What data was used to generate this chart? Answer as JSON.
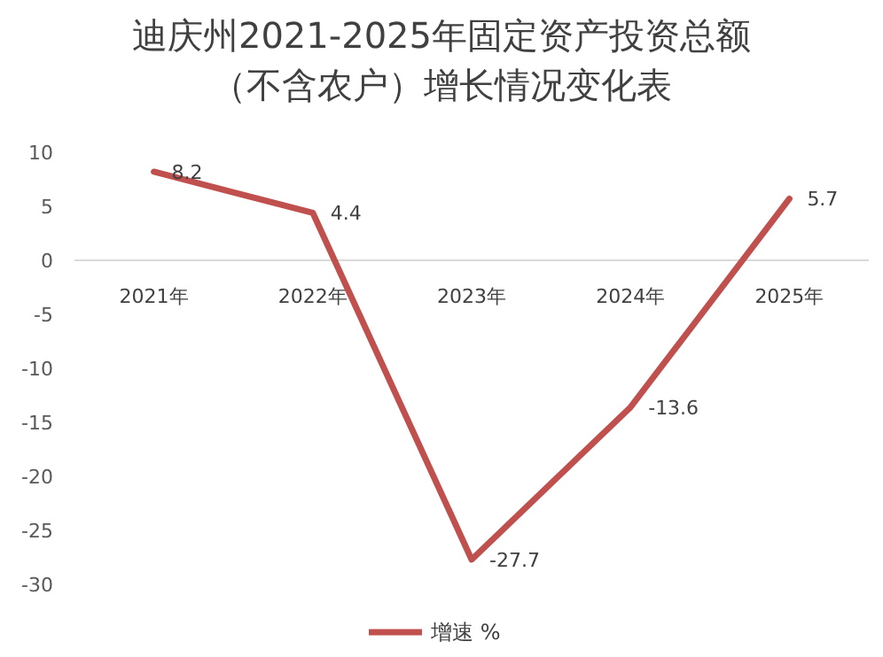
{
  "chart_data": {
    "type": "line",
    "title": "迪庆州2021-2025年固定资产投资总额",
    "subtitle": "（不含农户）增长情况变化表",
    "categories": [
      "2021年",
      "2022年",
      "2023年",
      "2024年",
      "2025年"
    ],
    "series": [
      {
        "name": "增速 %",
        "color": "#c0504d",
        "values": [
          8.2,
          4.4,
          -27.7,
          -13.6,
          5.7
        ]
      }
    ],
    "ylim": [
      -30,
      10
    ],
    "yticks": [
      -30,
      -25,
      -20,
      -15,
      -10,
      -5,
      0,
      5,
      10
    ],
    "data_labels": true,
    "legend": "bottom"
  }
}
